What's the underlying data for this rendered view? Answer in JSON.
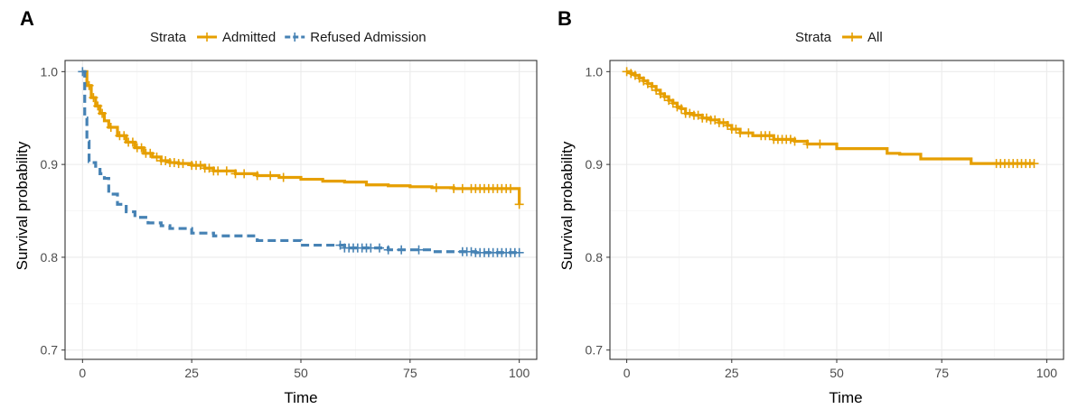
{
  "chart_data": [
    {
      "panel": "A",
      "type": "line",
      "xlabel": "Time",
      "ylabel": "Survival probability",
      "xlim": [
        -4,
        104
      ],
      "ylim": [
        0.69,
        1.012
      ],
      "xticks": [
        0,
        25,
        50,
        75,
        100
      ],
      "xtick_labels": [
        "0",
        "25",
        "50",
        "75",
        "100"
      ],
      "yticks": [
        0.7,
        0.8,
        0.9,
        1.0
      ],
      "ytick_labels": [
        "0.7",
        "0.8",
        "0.9",
        "1.0"
      ],
      "grid": true,
      "legend_title": "Strata",
      "legend_position": "top",
      "series": [
        {
          "name": "Admitted",
          "color": "#E69F00",
          "dash": "solid",
          "x": [
            0,
            1,
            2,
            3,
            4,
            5,
            6,
            8,
            10,
            12,
            14,
            16,
            18,
            20,
            22,
            25,
            28,
            30,
            35,
            40,
            45,
            50,
            55,
            60,
            65,
            70,
            75,
            80,
            85,
            90,
            95,
            99.5,
            100
          ],
          "y": [
            1.0,
            0.985,
            0.972,
            0.963,
            0.955,
            0.947,
            0.94,
            0.931,
            0.924,
            0.918,
            0.912,
            0.908,
            0.904,
            0.902,
            0.901,
            0.899,
            0.896,
            0.893,
            0.89,
            0.888,
            0.886,
            0.884,
            0.882,
            0.881,
            0.878,
            0.877,
            0.876,
            0.875,
            0.874,
            0.874,
            0.874,
            0.874,
            0.857
          ],
          "censor_x": [
            1.5,
            2.5,
            3.5,
            4.5,
            6.5,
            8.5,
            9.5,
            10.5,
            11.5,
            12.5,
            13.5,
            14.5,
            15.5,
            17,
            18,
            19,
            20,
            21,
            22,
            23,
            25,
            26,
            27,
            28,
            29,
            30,
            31,
            33,
            35,
            37,
            40,
            43,
            46,
            81,
            85,
            87,
            89,
            90,
            91,
            92,
            93,
            94,
            95,
            96,
            97,
            98,
            100
          ]
        },
        {
          "name": "Refused Admission",
          "color": "#4682B4",
          "dash": "dashed",
          "x": [
            0,
            0.5,
            1,
            1.5,
            2,
            3,
            4,
            5,
            6,
            8,
            10,
            12,
            15,
            18,
            20,
            25,
            30,
            40,
            50,
            60,
            70,
            80,
            90,
            100
          ],
          "y": [
            1.0,
            0.95,
            0.925,
            0.903,
            0.902,
            0.898,
            0.89,
            0.885,
            0.868,
            0.857,
            0.849,
            0.843,
            0.837,
            0.834,
            0.831,
            0.826,
            0.823,
            0.818,
            0.813,
            0.81,
            0.808,
            0.806,
            0.805,
            0.805
          ],
          "censor_x": [
            0,
            59,
            60,
            61,
            62,
            63,
            64,
            65,
            66,
            68,
            70,
            73,
            77,
            87,
            88,
            89,
            90,
            91,
            92,
            93,
            94,
            95,
            96,
            97,
            98,
            99,
            100
          ]
        }
      ]
    },
    {
      "panel": "B",
      "type": "line",
      "xlabel": "Time",
      "ylabel": "Survival probability",
      "xlim": [
        -4,
        104
      ],
      "ylim": [
        0.69,
        1.012
      ],
      "xticks": [
        0,
        25,
        50,
        75,
        100
      ],
      "xtick_labels": [
        "0",
        "25",
        "50",
        "75",
        "100"
      ],
      "yticks": [
        0.7,
        0.8,
        0.9,
        1.0
      ],
      "ytick_labels": [
        "0.7",
        "0.8",
        "0.9",
        "1.0"
      ],
      "grid": true,
      "legend_title": "Strata",
      "legend_position": "top",
      "series": [
        {
          "name": "All",
          "color": "#E69F00",
          "dash": "solid",
          "x": [
            0,
            1,
            2,
            3,
            4,
            5,
            6,
            7,
            8,
            9,
            10,
            11,
            12,
            13,
            14,
            16,
            18,
            20,
            22,
            24,
            25,
            27,
            30,
            35,
            40,
            43,
            45,
            50,
            55,
            62,
            65,
            70,
            75,
            82,
            85,
            90,
            97
          ],
          "y": [
            1.0,
            0.998,
            0.996,
            0.993,
            0.99,
            0.987,
            0.984,
            0.98,
            0.976,
            0.973,
            0.969,
            0.966,
            0.962,
            0.96,
            0.955,
            0.953,
            0.95,
            0.948,
            0.945,
            0.942,
            0.938,
            0.934,
            0.931,
            0.927,
            0.925,
            0.922,
            0.922,
            0.917,
            0.917,
            0.912,
            0.911,
            0.906,
            0.906,
            0.901,
            0.901,
            0.901,
            0.901
          ],
          "censor_x": [
            0,
            1,
            2,
            3,
            4,
            5,
            6,
            7,
            8,
            9,
            10,
            11,
            12,
            13,
            14,
            15,
            16,
            17,
            18,
            19,
            20,
            21,
            22,
            23,
            24,
            25,
            26,
            27,
            29,
            32,
            33,
            34,
            35,
            36,
            37,
            38,
            39,
            40,
            43,
            46,
            88,
            89,
            90,
            91,
            92,
            93,
            94,
            95,
            96,
            97
          ]
        }
      ]
    }
  ]
}
